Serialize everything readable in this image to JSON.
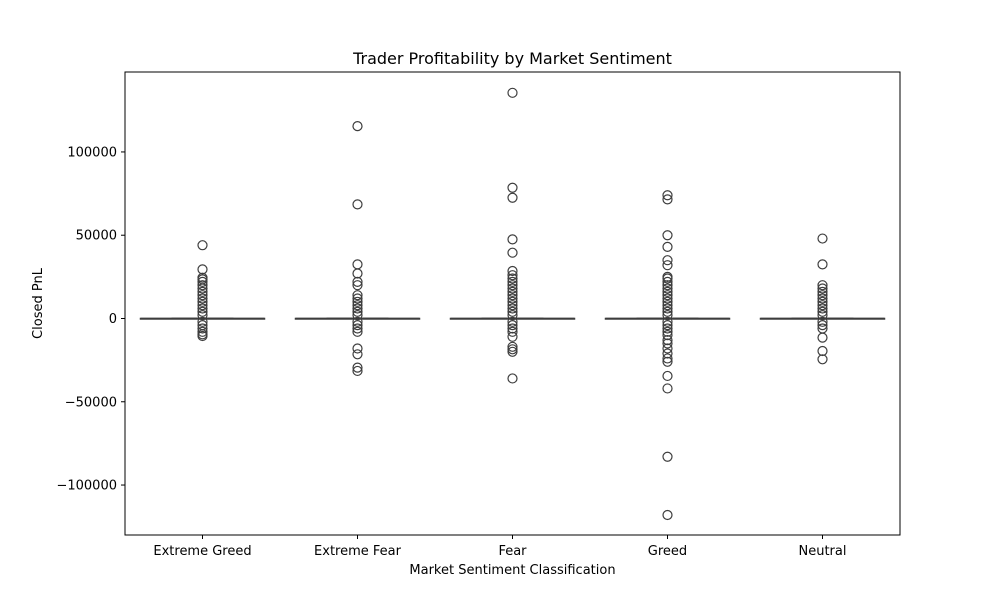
{
  "chart_data": {
    "type": "box",
    "title": "Trader Profitability by Market Sentiment",
    "xlabel": "Market Sentiment Classification",
    "ylabel": "Closed PnL",
    "categories": [
      "Extreme Greed",
      "Extreme Fear",
      "Fear",
      "Greed",
      "Neutral"
    ],
    "ylim": [
      -130000,
      148000
    ],
    "yticks": [
      -100000,
      -50000,
      0,
      50000,
      100000
    ],
    "ytick_labels": [
      "−100000",
      "−50000",
      "0",
      "50000",
      "100000"
    ],
    "grid": false,
    "colors": {
      "box": "#3d3d3d",
      "outlier_edge": "#3d3d3d",
      "axes": "#000000"
    },
    "boxes": [
      {
        "category": "Extreme Greed",
        "q1": 0,
        "median": 0,
        "q3": 0,
        "whisker_low": 0,
        "whisker_high": 0,
        "outliers": [
          44000,
          29500,
          24500,
          23500,
          22000,
          20000,
          18000,
          16000,
          14000,
          12000,
          10000,
          8000,
          6000,
          4000,
          2000,
          -2000,
          -4000,
          -6000,
          -8000,
          -9500,
          -10500
        ]
      },
      {
        "category": "Extreme Fear",
        "q1": 0,
        "median": 0,
        "q3": 0,
        "whisker_low": 0,
        "whisker_high": 0,
        "outliers": [
          115500,
          68500,
          32500,
          27000,
          22000,
          20000,
          14000,
          12000,
          10000,
          8000,
          6000,
          4000,
          2000,
          -2000,
          -4000,
          -6000,
          -8000,
          -18000,
          -21500,
          -29500,
          -31500
        ]
      },
      {
        "category": "Fear",
        "q1": 0,
        "median": 0,
        "q3": 0,
        "whisker_low": 0,
        "whisker_high": 0,
        "outliers": [
          135500,
          78500,
          72500,
          47500,
          39500,
          28500,
          26000,
          24000,
          22000,
          20000,
          18000,
          16000,
          14000,
          12000,
          10000,
          8000,
          6000,
          4000,
          2000,
          -2000,
          -4000,
          -6000,
          -8000,
          -11000,
          -17000,
          -18500,
          -20000,
          -36000
        ]
      },
      {
        "category": "Greed",
        "q1": 0,
        "median": 0,
        "q3": 0,
        "whisker_low": 0,
        "whisker_high": 0,
        "outliers": [
          74000,
          71500,
          50000,
          43000,
          35000,
          32000,
          25000,
          24000,
          22000,
          20000,
          18000,
          16000,
          14000,
          12000,
          10000,
          8000,
          6000,
          4000,
          2000,
          -2000,
          -4000,
          -6000,
          -8000,
          -10000,
          -13000,
          -15000,
          -18000,
          -21000,
          -24000,
          -26000,
          -34500,
          -42000,
          -83000,
          -118000
        ]
      },
      {
        "category": "Neutral",
        "q1": 0,
        "median": 0,
        "q3": 0,
        "whisker_low": 0,
        "whisker_high": 0,
        "outliers": [
          48000,
          32500,
          20000,
          18000,
          16000,
          14000,
          12000,
          10000,
          8000,
          6000,
          4000,
          2000,
          -2000,
          -4000,
          -6000,
          -11500,
          -19500,
          -24500
        ]
      }
    ]
  }
}
